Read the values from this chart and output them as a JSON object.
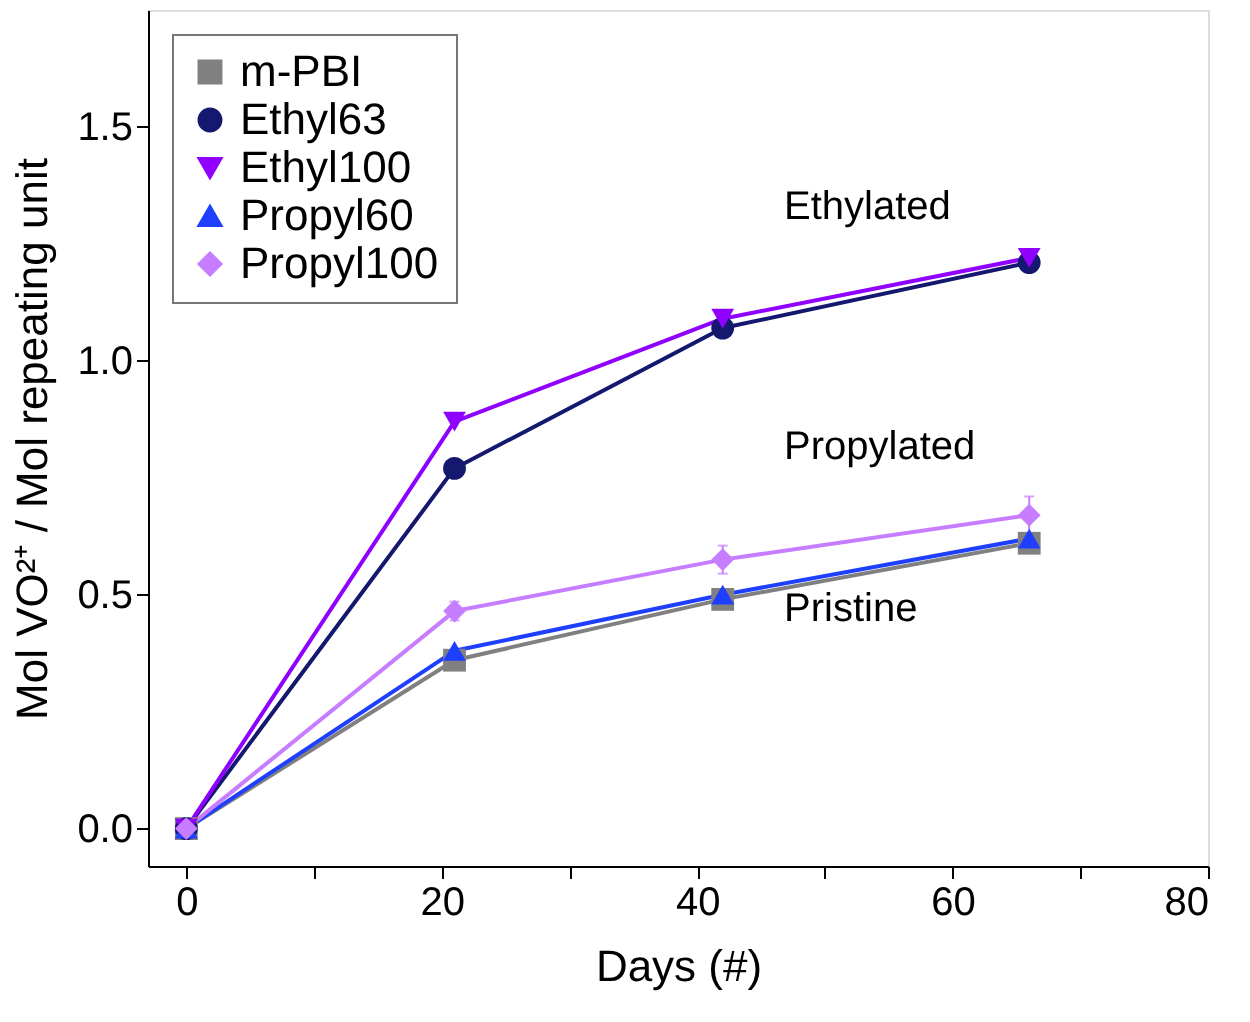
{
  "chart_data": {
    "type": "line",
    "xlabel": "Days (#)",
    "ylabel": "Mol VO²⁺ / Mol repeating unit",
    "x": [
      0,
      21,
      42,
      66
    ],
    "series": [
      {
        "name": "m-PBI",
        "color": "#808080",
        "marker": "square",
        "values": [
          0,
          0.36,
          0.49,
          0.61
        ]
      },
      {
        "name": "Ethyl63",
        "color": "#14186e",
        "marker": "circle",
        "values": [
          0,
          0.77,
          1.07,
          1.21
        ]
      },
      {
        "name": "Ethyl100",
        "color": "#8f00ff",
        "marker": "triangle-down",
        "values": [
          0,
          0.87,
          1.09,
          1.22
        ]
      },
      {
        "name": "Propyl60",
        "color": "#1f3fff",
        "marker": "triangle",
        "values": [
          0,
          0.38,
          0.5,
          0.62
        ]
      },
      {
        "name": "Propyl100",
        "color": "#c77dff",
        "marker": "diamond",
        "values": [
          0,
          0.465,
          0.575,
          0.67
        ],
        "errors": [
          null,
          0.02,
          0.03,
          0.04
        ]
      }
    ],
    "xlim": [
      -3,
      80
    ],
    "xticks": [
      0,
      {
        "value": 10,
        "label": null
      },
      20,
      {
        "value": 30,
        "label": null
      },
      40,
      {
        "value": 50,
        "label": null
      },
      60,
      {
        "value": 70,
        "label": null
      },
      80
    ],
    "ylim": [
      -0.08,
      1.75
    ],
    "yticks": [
      "0.0",
      0.5,
      {
        "value": 1,
        "label": "1.0"
      },
      1.5
    ],
    "legend": "top left",
    "grid": false,
    "annotations": [
      "Ethylated",
      "Propylated",
      "Pristine"
    ]
  }
}
